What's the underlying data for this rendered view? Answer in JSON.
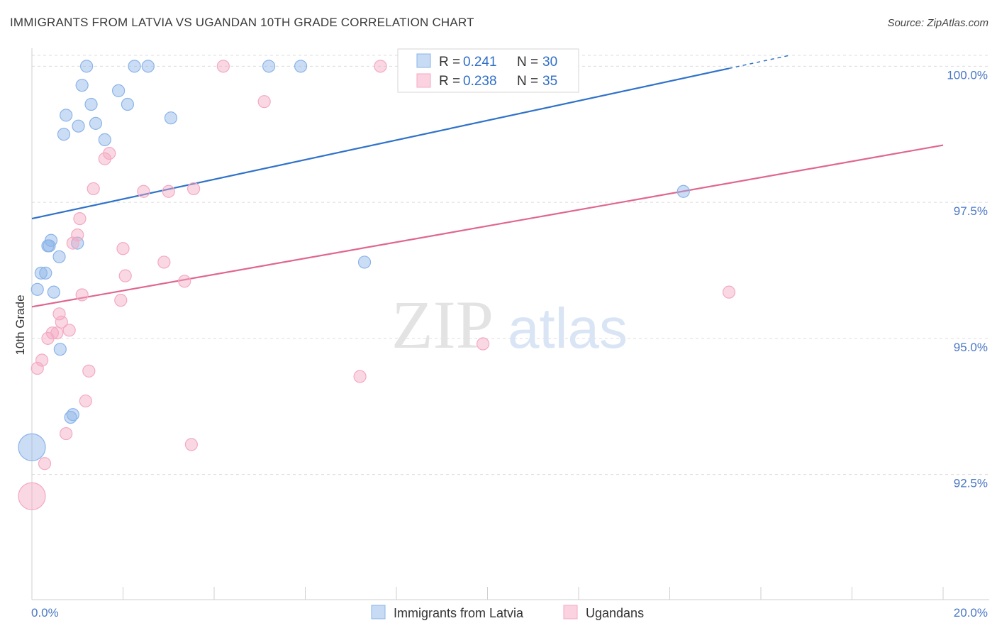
{
  "title": "IMMIGRANTS FROM LATVIA VS UGANDAN 10TH GRADE CORRELATION CHART",
  "source": "Source: ZipAtlas.com",
  "watermark": {
    "part1": "ZIP",
    "part2": "atlas"
  },
  "chart_data": {
    "type": "scatter",
    "title": "IMMIGRANTS FROM LATVIA VS UGANDAN 10TH GRADE CORRELATION CHART",
    "xlabel": "",
    "ylabel": "10th Grade",
    "xlim": [
      0,
      20
    ],
    "ylim": [
      90.2,
      100.2
    ],
    "x_tick_labels": [
      "0.0%",
      "20.0%"
    ],
    "y_ticks": [
      92.5,
      95.0,
      97.5,
      100.0
    ],
    "y_tick_labels": [
      "92.5%",
      "95.0%",
      "97.5%",
      "100.0%"
    ],
    "grid": true,
    "legend_stats": [
      {
        "r_label": "R =",
        "r_value": "0.241",
        "n_label": "N =",
        "n_value": "30"
      },
      {
        "r_label": "R =",
        "r_value": "0.238",
        "n_label": "N =",
        "n_value": "35"
      }
    ],
    "series": [
      {
        "name": "Immigrants from Latvia",
        "color": "#8bb4e8",
        "line_color": "#2f72c9",
        "trend": {
          "x0": 0,
          "y0": 97.2,
          "x1": 15.3,
          "y1": 99.96
        },
        "points": [
          {
            "x": 0.0,
            "y": 93.0,
            "size": "large"
          },
          {
            "x": 0.12,
            "y": 95.9
          },
          {
            "x": 0.2,
            "y": 96.2
          },
          {
            "x": 0.3,
            "y": 96.2
          },
          {
            "x": 0.35,
            "y": 96.7
          },
          {
            "x": 0.42,
            "y": 96.8
          },
          {
            "x": 0.48,
            "y": 95.85
          },
          {
            "x": 0.6,
            "y": 96.5
          },
          {
            "x": 0.62,
            "y": 94.8
          },
          {
            "x": 0.7,
            "y": 98.75
          },
          {
            "x": 0.75,
            "y": 99.1
          },
          {
            "x": 0.85,
            "y": 93.55
          },
          {
            "x": 0.9,
            "y": 93.6
          },
          {
            "x": 1.0,
            "y": 96.75
          },
          {
            "x": 1.02,
            "y": 98.9
          },
          {
            "x": 1.1,
            "y": 99.65
          },
          {
            "x": 1.2,
            "y": 100.0
          },
          {
            "x": 1.3,
            "y": 99.3
          },
          {
            "x": 1.4,
            "y": 98.95
          },
          {
            "x": 1.6,
            "y": 98.65
          },
          {
            "x": 1.9,
            "y": 99.55
          },
          {
            "x": 2.1,
            "y": 99.3
          },
          {
            "x": 2.25,
            "y": 100.0
          },
          {
            "x": 2.55,
            "y": 100.0
          },
          {
            "x": 3.05,
            "y": 99.05
          },
          {
            "x": 5.2,
            "y": 100.0
          },
          {
            "x": 5.9,
            "y": 100.0
          },
          {
            "x": 7.3,
            "y": 96.4
          },
          {
            "x": 14.3,
            "y": 97.7
          },
          {
            "x": 0.38,
            "y": 96.7
          }
        ]
      },
      {
        "name": "Ugandans",
        "color": "#f4a9c2",
        "line_color": "#e0668f",
        "trend": {
          "x0": 0,
          "y0": 95.58,
          "x1": 20,
          "y1": 98.55
        },
        "points": [
          {
            "x": 0.0,
            "y": 92.1,
            "size": "large"
          },
          {
            "x": 0.12,
            "y": 94.45
          },
          {
            "x": 0.22,
            "y": 94.6
          },
          {
            "x": 0.28,
            "y": 92.7
          },
          {
            "x": 0.35,
            "y": 95.0
          },
          {
            "x": 0.45,
            "y": 95.1
          },
          {
            "x": 0.55,
            "y": 95.1
          },
          {
            "x": 0.6,
            "y": 95.45
          },
          {
            "x": 0.65,
            "y": 95.3
          },
          {
            "x": 0.75,
            "y": 93.25
          },
          {
            "x": 0.82,
            "y": 95.15
          },
          {
            "x": 0.9,
            "y": 96.75
          },
          {
            "x": 1.0,
            "y": 96.9
          },
          {
            "x": 1.05,
            "y": 97.2
          },
          {
            "x": 1.1,
            "y": 95.8
          },
          {
            "x": 1.18,
            "y": 93.85
          },
          {
            "x": 1.25,
            "y": 94.4
          },
          {
            "x": 1.35,
            "y": 97.75
          },
          {
            "x": 1.6,
            "y": 98.3
          },
          {
            "x": 1.7,
            "y": 98.4
          },
          {
            "x": 1.95,
            "y": 95.7
          },
          {
            "x": 2.0,
            "y": 96.65
          },
          {
            "x": 2.05,
            "y": 96.15
          },
          {
            "x": 2.45,
            "y": 97.7
          },
          {
            "x": 2.9,
            "y": 96.4
          },
          {
            "x": 3.0,
            "y": 97.7
          },
          {
            "x": 3.35,
            "y": 96.05
          },
          {
            "x": 3.5,
            "y": 93.05
          },
          {
            "x": 3.55,
            "y": 97.75
          },
          {
            "x": 4.2,
            "y": 100.0
          },
          {
            "x": 5.1,
            "y": 99.35
          },
          {
            "x": 7.2,
            "y": 94.3
          },
          {
            "x": 7.65,
            "y": 100.0
          },
          {
            "x": 9.9,
            "y": 94.9
          },
          {
            "x": 15.3,
            "y": 95.85
          }
        ]
      }
    ]
  }
}
